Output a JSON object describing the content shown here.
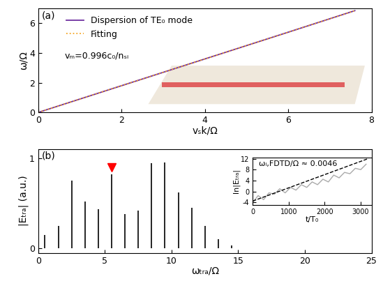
{
  "chart_data": [
    {
      "panel_label": "(a)",
      "type": "line",
      "xlabel": "vₛk/Ω",
      "ylabel": "ω/Ω",
      "xlim": [
        0,
        8
      ],
      "xticks": [
        0,
        2,
        4,
        6,
        8
      ],
      "ylim": [
        0,
        7
      ],
      "yticks": [
        0,
        2,
        4,
        6
      ],
      "legend": "upper left",
      "annotation": "vₘ=0.996c₀/nₛᵢ",
      "series": [
        {
          "name": "Dispersion of TE₀ mode",
          "color": "#7030a0",
          "line_style": "solid",
          "x": [
            0,
            2,
            4,
            6,
            7.6
          ],
          "values": [
            0,
            1.8,
            3.6,
            5.4,
            6.85
          ]
        },
        {
          "name": "Fitting",
          "color": "#f5a623",
          "line_style": "dotted",
          "x": [
            0,
            2,
            4,
            6,
            7.6
          ],
          "values": [
            0,
            1.8,
            3.6,
            5.4,
            6.85
          ]
        }
      ]
    },
    {
      "panel_label": "(b)",
      "type": "stem",
      "xlabel": "ωₜᵣₐ/Ω",
      "ylabel": "|Eₜᵣₐ| (a.u.)",
      "xlim": [
        0,
        25
      ],
      "xticks": [
        0,
        5,
        10,
        15,
        20,
        25
      ],
      "ylim": [
        -0.05,
        1.1
      ],
      "yticks": [
        0,
        1
      ],
      "color": "#000000",
      "x": [
        0.5,
        1.5,
        2.5,
        3.5,
        4.5,
        5.5,
        6.5,
        7.5,
        8.5,
        9.5,
        10.5,
        11.5,
        12.5,
        13.5,
        14.5
      ],
      "values": [
        0.15,
        0.25,
        0.75,
        0.52,
        0.43,
        0.82,
        0.38,
        0.42,
        0.94,
        0.95,
        0.62,
        0.45,
        0.25,
        0.1,
        0.03
      ],
      "highlight": {
        "x": 5.5,
        "y": 0.9,
        "color": "red",
        "marker": "v"
      }
    },
    {
      "type": "line",
      "xlabel": "t/T₀",
      "ylabel": "ln|Eₜᵣₐ|",
      "xlim": [
        0,
        3300
      ],
      "xticks": [
        0,
        1000,
        2000,
        3000
      ],
      "ylim": [
        -5,
        12.5
      ],
      "yticks": [
        -4,
        0,
        4,
        8,
        12
      ],
      "annotation": "ωᵢ,FDTD/Ω ≈ 0.0046",
      "series": [
        {
          "color": "#aaaaaa",
          "line_style": "solid",
          "x": [
            0,
            150,
            300,
            450,
            600,
            750,
            900,
            1050,
            1200,
            1350,
            1500,
            1650,
            1800,
            1950,
            2100,
            2250,
            2400,
            2550,
            2700,
            2850,
            3000,
            3150
          ],
          "values": [
            -4,
            -1.5,
            -3,
            -0.5,
            -1,
            1,
            -0.5,
            1.5,
            0.5,
            2.5,
            1.5,
            3.5,
            2.5,
            4.5,
            3.5,
            6,
            5,
            7,
            6.5,
            8.5,
            8,
            10
          ]
        },
        {
          "color": "#000000",
          "line_style": "dashed",
          "x": [
            0,
            3200
          ],
          "values": [
            -3.5,
            12
          ]
        }
      ]
    }
  ]
}
